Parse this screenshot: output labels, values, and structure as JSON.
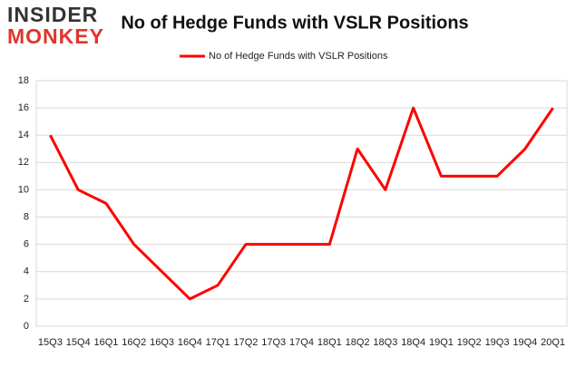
{
  "logo": {
    "top": "INSIDER",
    "bottom": "MONKEY"
  },
  "chart_data": {
    "type": "line",
    "title": "No of Hedge Funds with VSLR Positions",
    "categories": [
      "15Q3",
      "15Q4",
      "16Q1",
      "16Q2",
      "16Q3",
      "16Q4",
      "17Q1",
      "17Q2",
      "17Q3",
      "17Q4",
      "18Q1",
      "18Q2",
      "18Q3",
      "18Q4",
      "19Q1",
      "19Q2",
      "19Q3",
      "19Q4",
      "20Q1"
    ],
    "series": [
      {
        "name": "No of Hedge Funds with VSLR Positions",
        "color": "#ff0000",
        "values": [
          14,
          10,
          9,
          6,
          4,
          2,
          3,
          6,
          6,
          6,
          6,
          13,
          10,
          16,
          11,
          11,
          11,
          13,
          16
        ]
      }
    ],
    "ylim": [
      0,
      18
    ],
    "yticks": [
      0,
      2,
      4,
      6,
      8,
      10,
      12,
      14,
      16,
      18
    ],
    "grid": true,
    "legend": "top"
  }
}
